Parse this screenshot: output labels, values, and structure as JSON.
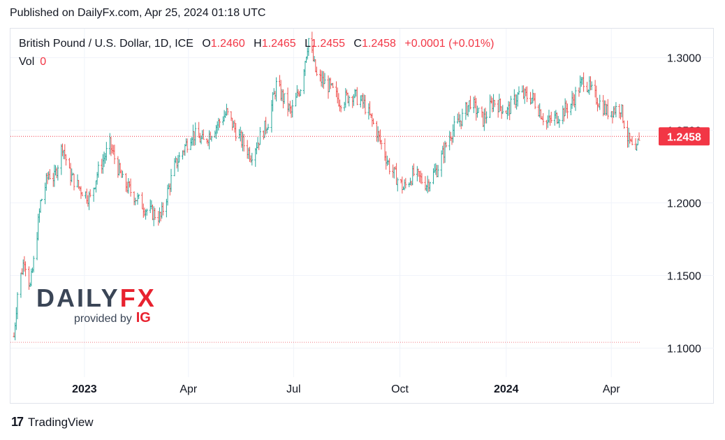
{
  "header": {
    "published": "Published on DailyFx.com, Apr 25, 2024 01:18 UTC"
  },
  "legend": {
    "symbol": "British Pound / U.S. Dollar, 1D, ICE",
    "open_label": "O",
    "open": "1.2460",
    "high_label": "H",
    "high": "1.2465",
    "low_label": "L",
    "low": "1.2455",
    "close_label": "C",
    "close": "1.2458",
    "change": "+0.0001 (+0.01%)",
    "vol_label": "Vol",
    "vol": "0"
  },
  "watermark": {
    "brand_a": "DAILY",
    "brand_b": "FX",
    "sub": "provided by",
    "sub_brand": "IG"
  },
  "footer": {
    "brand": "TradingView"
  },
  "colors": {
    "up": "#26a69a",
    "down": "#ef5350",
    "last_price": "#f23645",
    "grid": "#f0f3fa"
  },
  "chart_data": {
    "type": "ohlc",
    "y_scale": "linear",
    "ylim": [
      1.08,
      1.32
    ],
    "y_ticks": [
      "1.3000",
      "1.2500",
      "1.2000",
      "1.1500",
      "1.1000"
    ],
    "x_range": [
      "2022-11-01",
      "2024-04-25"
    ],
    "x_ticks": [
      {
        "date": "2023-01-01",
        "label": "2023",
        "bold": true
      },
      {
        "date": "2023-04-01",
        "label": "Apr",
        "bold": false
      },
      {
        "date": "2023-07-01",
        "label": "Jul",
        "bold": false
      },
      {
        "date": "2023-10-01",
        "label": "Oct",
        "bold": false
      },
      {
        "date": "2024-01-01",
        "label": "2024",
        "bold": true
      },
      {
        "date": "2024-04-01",
        "label": "Apr",
        "bold": false
      }
    ],
    "last_price": 1.2458,
    "last_price_label": "1.2458",
    "reference_line": 1.104,
    "path": [
      [
        "2022-11-01",
        1.108
      ],
      [
        "2022-11-04",
        1.138
      ],
      [
        "2022-11-10",
        1.162
      ],
      [
        "2022-11-15",
        1.142
      ],
      [
        "2022-11-18",
        1.159
      ],
      [
        "2022-11-24",
        1.2
      ],
      [
        "2022-12-01",
        1.22
      ],
      [
        "2022-12-06",
        1.217
      ],
      [
        "2022-12-13",
        1.24
      ],
      [
        "2022-12-19",
        1.22
      ],
      [
        "2022-12-27",
        1.211
      ],
      [
        "2023-01-06",
        1.203
      ],
      [
        "2023-01-12",
        1.22
      ],
      [
        "2023-01-23",
        1.24
      ],
      [
        "2023-02-03",
        1.215
      ],
      [
        "2023-02-13",
        1.205
      ],
      [
        "2023-02-24",
        1.195
      ],
      [
        "2023-03-08",
        1.19
      ],
      [
        "2023-03-20",
        1.225
      ],
      [
        "2023-04-04",
        1.248
      ],
      [
        "2023-04-14",
        1.242
      ],
      [
        "2023-05-04",
        1.262
      ],
      [
        "2023-05-15",
        1.245
      ],
      [
        "2023-05-25",
        1.233
      ],
      [
        "2023-06-09",
        1.256
      ],
      [
        "2023-06-16",
        1.281
      ],
      [
        "2023-06-29",
        1.262
      ],
      [
        "2023-07-07",
        1.28
      ],
      [
        "2023-07-14",
        1.313
      ],
      [
        "2023-07-21",
        1.287
      ],
      [
        "2023-08-01",
        1.28
      ],
      [
        "2023-08-10",
        1.27
      ],
      [
        "2023-08-21",
        1.275
      ],
      [
        "2023-08-31",
        1.268
      ],
      [
        "2023-09-11",
        1.249
      ],
      [
        "2023-09-22",
        1.225
      ],
      [
        "2023-10-04",
        1.21
      ],
      [
        "2023-10-13",
        1.22
      ],
      [
        "2023-10-24",
        1.213
      ],
      [
        "2023-11-02",
        1.223
      ],
      [
        "2023-11-14",
        1.248
      ],
      [
        "2023-11-24",
        1.259
      ],
      [
        "2023-12-01",
        1.27
      ],
      [
        "2023-12-12",
        1.257
      ],
      [
        "2023-12-21",
        1.27
      ],
      [
        "2024-01-02",
        1.263
      ],
      [
        "2024-01-12",
        1.275
      ],
      [
        "2024-01-24",
        1.272
      ],
      [
        "2024-02-05",
        1.255
      ],
      [
        "2024-02-15",
        1.26
      ],
      [
        "2024-02-26",
        1.268
      ],
      [
        "2024-03-08",
        1.285
      ],
      [
        "2024-03-19",
        1.272
      ],
      [
        "2024-03-28",
        1.263
      ],
      [
        "2024-04-09",
        1.266
      ],
      [
        "2024-04-15",
        1.245
      ],
      [
        "2024-04-22",
        1.232
      ],
      [
        "2024-04-25",
        1.2458
      ]
    ]
  }
}
